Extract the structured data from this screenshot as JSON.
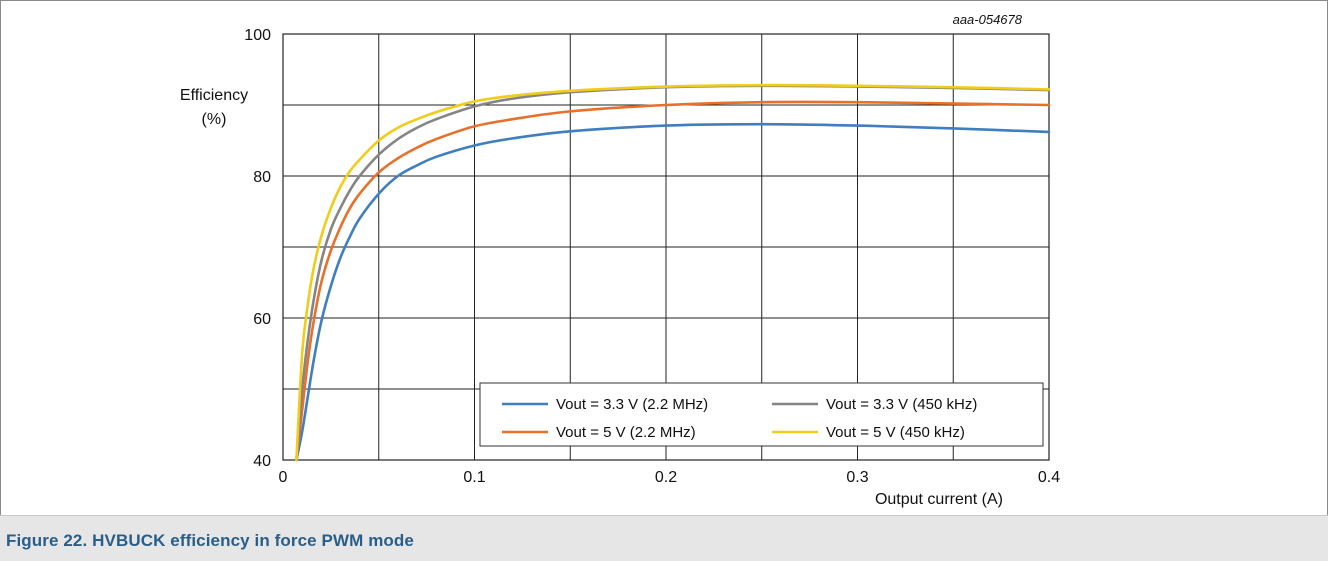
{
  "figure": {
    "id_label": "aaa-054678",
    "caption": "Figure 22.  HVBUCK efficiency in force PWM mode"
  },
  "chart_data": {
    "type": "line",
    "xlabel": "Output current (A)",
    "ylabel_line1": "Efficiency",
    "ylabel_line2": "(%)",
    "xlim": [
      0,
      0.4
    ],
    "ylim": [
      40,
      100
    ],
    "x_ticks": [
      0,
      0.1,
      0.2,
      0.3,
      0.4
    ],
    "x_tick_labels": [
      "0",
      "0.1",
      "0.2",
      "0.3",
      "0.4"
    ],
    "x_grid": [
      0.05,
      0.1,
      0.15,
      0.2,
      0.25,
      0.3,
      0.35
    ],
    "y_ticks": [
      40,
      60,
      80,
      100
    ],
    "y_tick_labels": [
      "40",
      "60",
      "80",
      "100"
    ],
    "y_grid": [
      50,
      60,
      70,
      80,
      90
    ],
    "grid": true,
    "legend_position": "bottom-right",
    "series": [
      {
        "name": "Vout = 3.3 V (2.2 MHz)",
        "color": "#3f7ec1",
        "x": [
          0.007,
          0.01,
          0.013,
          0.016,
          0.02,
          0.025,
          0.03,
          0.035,
          0.04,
          0.05,
          0.06,
          0.07,
          0.08,
          0.1,
          0.12,
          0.15,
          0.2,
          0.25,
          0.3,
          0.35,
          0.4
        ],
        "y": [
          40,
          44,
          49,
          54,
          59.5,
          64.5,
          68.5,
          71.5,
          74,
          77.5,
          80,
          81.5,
          82.7,
          84.3,
          85.3,
          86.3,
          87.1,
          87.3,
          87.1,
          86.7,
          86.2
        ]
      },
      {
        "name": "Vout = 3.3 V (450 kHz)",
        "color": "#858585",
        "x": [
          0.007,
          0.01,
          0.013,
          0.016,
          0.02,
          0.025,
          0.03,
          0.035,
          0.04,
          0.05,
          0.06,
          0.07,
          0.08,
          0.1,
          0.12,
          0.15,
          0.2,
          0.25,
          0.3,
          0.35,
          0.4
        ],
        "y": [
          40,
          50,
          57,
          62.5,
          68,
          72.5,
          75.5,
          78,
          80,
          83,
          85.2,
          86.8,
          88,
          89.8,
          90.9,
          91.8,
          92.5,
          92.7,
          92.6,
          92.4,
          92.1
        ]
      },
      {
        "name": "Vout = 5 V (2.2 MHz)",
        "color": "#e8702a",
        "x": [
          0.007,
          0.01,
          0.013,
          0.016,
          0.02,
          0.025,
          0.03,
          0.035,
          0.04,
          0.05,
          0.06,
          0.07,
          0.08,
          0.1,
          0.12,
          0.15,
          0.2,
          0.25,
          0.3,
          0.35,
          0.4
        ],
        "y": [
          40,
          47,
          54,
          59.5,
          65,
          69.5,
          72.8,
          75.5,
          77.5,
          80.5,
          82.5,
          84,
          85.2,
          87,
          88,
          89.1,
          90,
          90.4,
          90.4,
          90.2,
          90
        ]
      },
      {
        "name": "Vout = 5 V (450 kHz)",
        "color": "#f2cc1a",
        "x": [
          0.007,
          0.01,
          0.013,
          0.016,
          0.02,
          0.025,
          0.03,
          0.035,
          0.04,
          0.05,
          0.06,
          0.07,
          0.08,
          0.1,
          0.12,
          0.15,
          0.2,
          0.25,
          0.3,
          0.35,
          0.4
        ],
        "y": [
          40,
          55,
          62,
          67,
          71.5,
          75.5,
          78.5,
          80.7,
          82.3,
          85,
          86.8,
          88,
          89,
          90.5,
          91.3,
          92,
          92.6,
          92.8,
          92.7,
          92.5,
          92.2
        ]
      }
    ]
  }
}
